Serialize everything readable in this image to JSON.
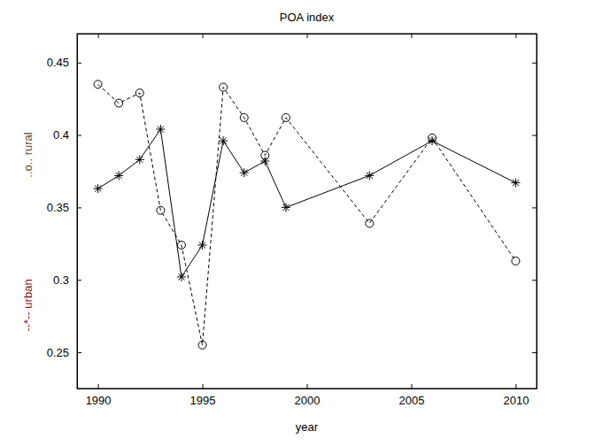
{
  "chart_data": {
    "type": "line",
    "title": "POA index",
    "xlabel": "year",
    "x": [
      1990,
      1991,
      1992,
      1993,
      1994,
      1995,
      1996,
      1997,
      1998,
      1999,
      2003,
      2006,
      2010
    ],
    "series": [
      {
        "name": "--*-- urban",
        "color": "#000000",
        "marker": "asterisk",
        "line_style": "solid",
        "values": [
          0.363,
          0.372,
          0.383,
          0.404,
          0.302,
          0.324,
          0.396,
          0.374,
          0.382,
          0.35,
          0.372,
          0.396,
          0.367
        ]
      },
      {
        "name": "..o.. rural",
        "color": "#000000",
        "marker": "circle",
        "line_style": "dashed",
        "values": [
          0.435,
          0.422,
          0.429,
          0.348,
          0.324,
          0.255,
          0.433,
          0.412,
          0.386,
          0.412,
          0.339,
          0.398,
          0.313
        ]
      }
    ],
    "xlim": [
      1989,
      2011
    ],
    "xticks": [
      1990,
      1995,
      2000,
      2005,
      2010
    ],
    "ylim": [
      0.225,
      0.47
    ],
    "yticks": [
      0.25,
      0.3,
      0.35,
      0.4,
      0.45
    ],
    "grid": false
  }
}
